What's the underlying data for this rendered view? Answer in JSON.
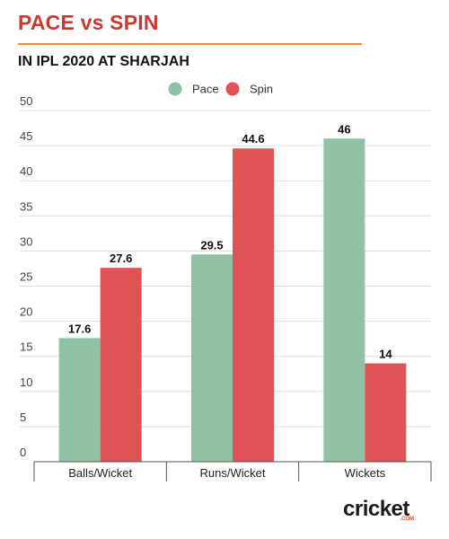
{
  "header": {
    "title": "PACE vs SPIN",
    "subtitle": "IN IPL 2020 AT SHARJAH"
  },
  "colors": {
    "title": "#c8392f",
    "rule": "#f08c3a",
    "pace": "#8fc2a4",
    "spin": "#e05355",
    "grid": "#dddddd"
  },
  "chart_data": {
    "type": "bar",
    "categories": [
      "Balls/Wicket",
      "Runs/Wicket",
      "Wickets"
    ],
    "series": [
      {
        "name": "Pace",
        "values": [
          17.6,
          29.5,
          46
        ]
      },
      {
        "name": "Spin",
        "values": [
          27.6,
          44.6,
          14
        ]
      }
    ],
    "value_labels": [
      [
        "17.6",
        "29.5",
        "46"
      ],
      [
        "27.6",
        "44.6",
        "14"
      ]
    ],
    "yticks": [
      0,
      5,
      10,
      15,
      20,
      25,
      30,
      35,
      40,
      45,
      50
    ],
    "ylim": [
      0,
      50
    ],
    "grid": true,
    "legend_position": "top-center",
    "xlabel": "",
    "ylabel": ""
  },
  "logo": {
    "word": "cricket",
    "suffix": ".COM"
  }
}
